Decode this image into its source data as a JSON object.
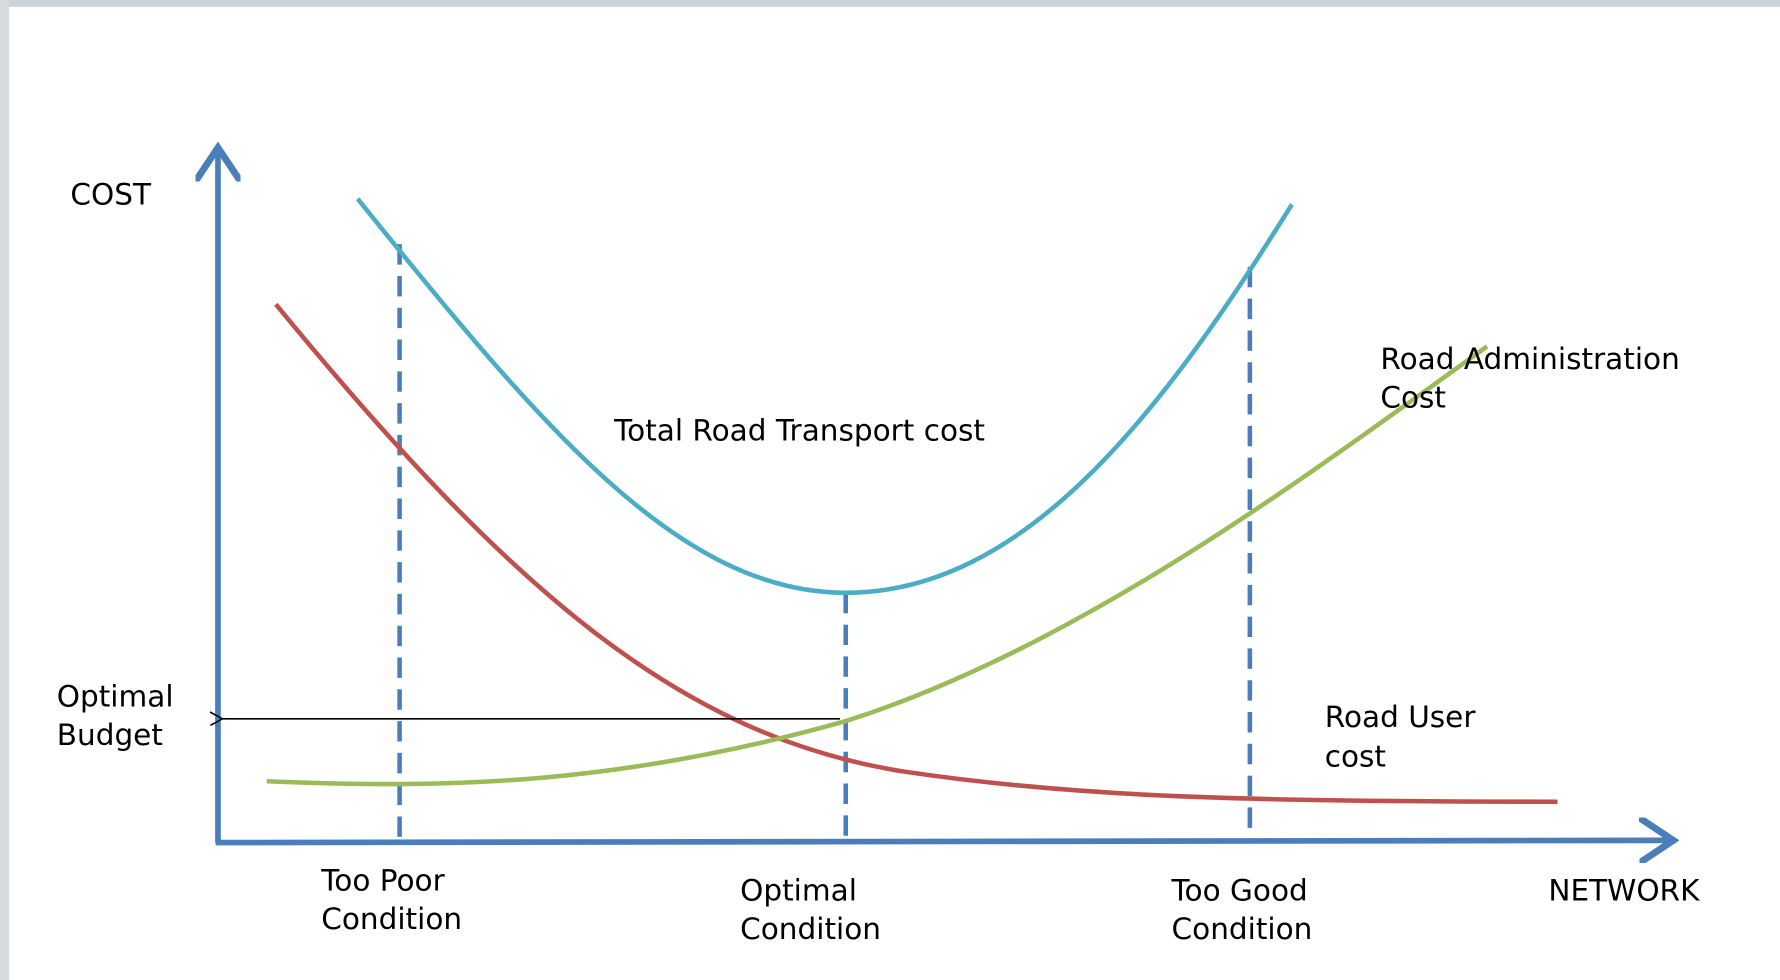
{
  "axes": {
    "y_label": "COST",
    "x_label": "NETWORK"
  },
  "curve_labels": {
    "total": [
      "Total Road Transport cost"
    ],
    "administration": [
      "Road Administration",
      "Cost"
    ],
    "user": [
      "Road User",
      "cost"
    ]
  },
  "budget_label": [
    "Optimal",
    "Budget"
  ],
  "conditions": [
    [
      "Too Poor",
      "Condition"
    ],
    [
      "Optimal",
      "Condition"
    ],
    [
      "Too Good",
      "Condition"
    ]
  ]
}
